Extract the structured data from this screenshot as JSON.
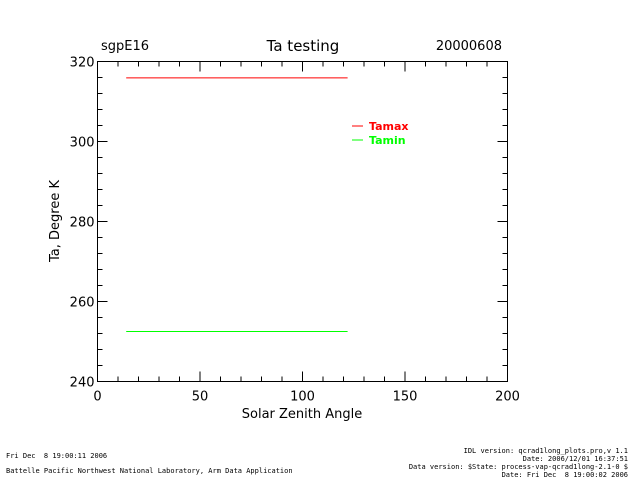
{
  "header": {
    "site": "sgpE16",
    "title": "Ta testing",
    "date": "20000608"
  },
  "footer": {
    "left_line1": "Fri Dec  8 19:00:11 2006",
    "left_line2": "Battelle Pacific Northwest National Laboratory, Arm Data Application",
    "right_line1": "IDL version: qcrad1long_plots.pro,v 1.1",
    "right_line2": "Date: 2006/12/01 16:37:51",
    "right_line3": "Data version: $State: process-vap-qcrad1long-2.1-0 $",
    "right_line4": "Date: Fri Dec  8 19:00:02 2006"
  },
  "chart_data": {
    "type": "line",
    "title": "Ta testing",
    "xlabel": "Solar Zenith Angle",
    "ylabel": "Ta, Degree K",
    "xlim": [
      0,
      200
    ],
    "ylim": [
      240,
      320
    ],
    "x_major_ticks": [
      0,
      50,
      100,
      150,
      200
    ],
    "y_major_ticks": [
      240,
      260,
      280,
      300,
      320
    ],
    "x_tick_labels": [
      "0",
      "50",
      "100",
      "150",
      "200"
    ],
    "y_tick_labels": [
      "240",
      "260",
      "280",
      "300",
      "320"
    ],
    "grid": false,
    "legend_position": "top-right",
    "series": [
      {
        "name": "Tamax",
        "color": "#ff0000",
        "x": [
          14,
          122
        ],
        "y": [
          315.9,
          315.9
        ]
      },
      {
        "name": "Tamin",
        "color": "#00ff00",
        "x": [
          14,
          122
        ],
        "y": [
          252.5,
          252.5
        ]
      }
    ]
  }
}
